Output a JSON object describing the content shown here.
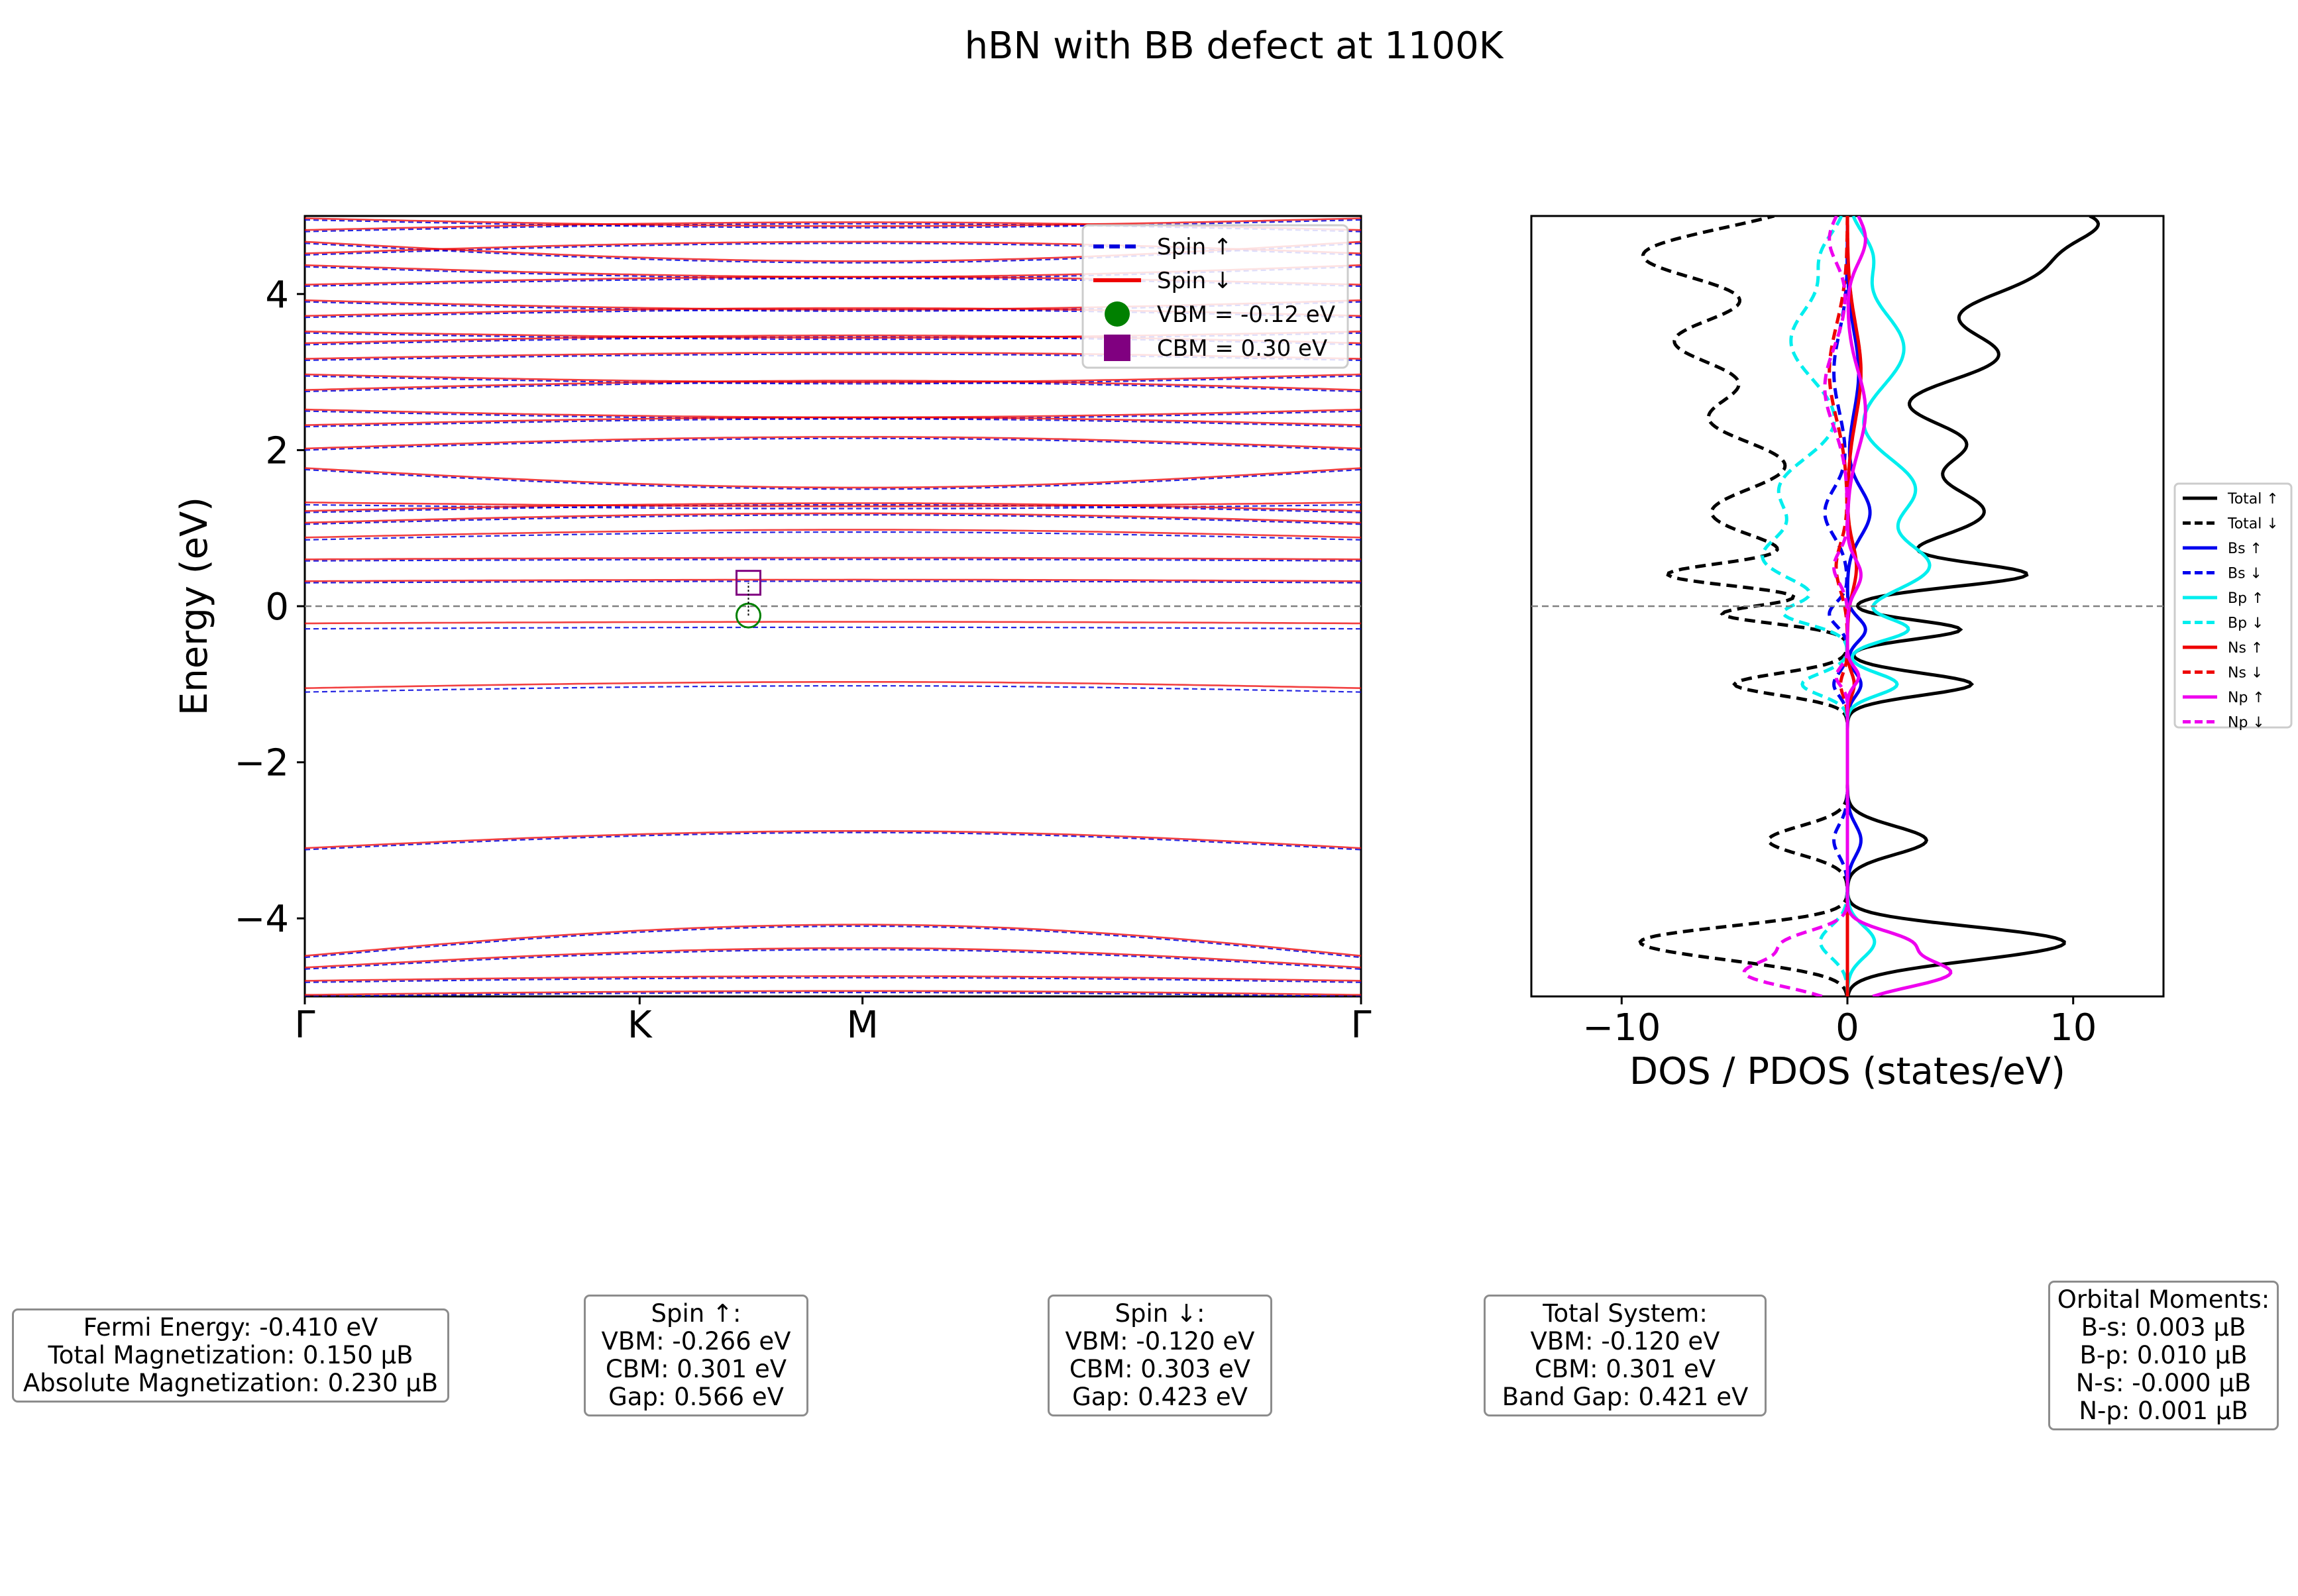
{
  "chart_data": [
    {
      "type": "line",
      "title": "hBN with BB defect at 1100K",
      "xlabel": "",
      "ylabel": "Energy (eV)",
      "ylim": [
        -5,
        5
      ],
      "yticks": [
        -4,
        -2,
        0,
        2,
        4
      ],
      "ytick_labels": [
        "−4",
        "−2",
        "0",
        "2",
        "4"
      ],
      "kpath": [
        {
          "label": "Γ",
          "pos": 0.0
        },
        {
          "label": "K",
          "pos": 0.317
        },
        {
          "label": "M",
          "pos": 0.528
        },
        {
          "label": "Γ",
          "pos": 1.0
        }
      ],
      "fermi_level": 0,
      "grid": false,
      "legend_position": "top-right",
      "legend": [
        {
          "label": "Spin ↑",
          "color": "#0000dd",
          "style": "dashed"
        },
        {
          "label": "Spin ↓",
          "color": "#ee0000",
          "style": "solid"
        },
        {
          "label": "VBM = -0.12 eV",
          "color": "#008000",
          "marker": "circle"
        },
        {
          "label": "CBM = 0.30 eV",
          "color": "#800080",
          "marker": "square"
        }
      ],
      "vbm": {
        "k": 0.42,
        "energy": -0.12
      },
      "cbm": {
        "k": 0.42,
        "energy": 0.3
      },
      "series": [
        {
          "spin": "up",
          "style": "dashed",
          "bands": [
            {
              "e0": -5.0,
              "de": 0.05
            },
            {
              "e0": -4.82,
              "de": 0.06
            },
            {
              "e0": -4.65,
              "de": 0.25
            },
            {
              "e0": -4.5,
              "de": 0.4
            },
            {
              "e0": -3.12,
              "de": 0.22
            },
            {
              "e0": -1.1,
              "de": 0.08
            },
            {
              "e0": -0.29,
              "de": 0.02
            },
            {
              "e0": 0.3,
              "de": 0.02
            },
            {
              "e0": 0.58,
              "de": 0.02
            },
            {
              "e0": 0.85,
              "de": 0.1
            },
            {
              "e0": 1.05,
              "de": 0.12
            },
            {
              "e0": 1.2,
              "de": 0.1
            },
            {
              "e0": 1.3,
              "de": -0.05
            },
            {
              "e0": 1.75,
              "de": -0.25
            },
            {
              "e0": 2.0,
              "de": 0.15
            },
            {
              "e0": 2.3,
              "de": 0.1
            },
            {
              "e0": 2.5,
              "de": -0.1
            },
            {
              "e0": 2.75,
              "de": 0.12
            },
            {
              "e0": 2.95,
              "de": -0.1
            },
            {
              "e0": 3.15,
              "de": 0.08
            },
            {
              "e0": 3.35,
              "de": 0.1
            },
            {
              "e0": 3.5,
              "de": -0.08
            },
            {
              "e0": 3.7,
              "de": 0.1
            },
            {
              "e0": 3.9,
              "de": -0.12
            },
            {
              "e0": 4.1,
              "de": 0.1
            },
            {
              "e0": 4.35,
              "de": -0.15
            },
            {
              "e0": 4.5,
              "de": 0.15
            },
            {
              "e0": 4.65,
              "de": -0.25
            },
            {
              "e0": 4.8,
              "de": 0.1
            },
            {
              "e0": 4.95,
              "de": -0.1
            }
          ]
        },
        {
          "spin": "down",
          "style": "solid",
          "bands": [
            {
              "e0": -4.98,
              "de": 0.05
            },
            {
              "e0": -4.8,
              "de": 0.06
            },
            {
              "e0": -4.63,
              "de": 0.25
            },
            {
              "e0": -4.48,
              "de": 0.4
            },
            {
              "e0": -3.1,
              "de": 0.22
            },
            {
              "e0": -1.05,
              "de": 0.08
            },
            {
              "e0": -0.22,
              "de": 0.02
            },
            {
              "e0": 0.32,
              "de": 0.02
            },
            {
              "e0": 0.6,
              "de": 0.02
            },
            {
              "e0": 0.88,
              "de": 0.1
            },
            {
              "e0": 1.07,
              "de": 0.12
            },
            {
              "e0": 1.22,
              "de": 0.1
            },
            {
              "e0": 1.33,
              "de": -0.05
            },
            {
              "e0": 1.77,
              "de": -0.25
            },
            {
              "e0": 2.02,
              "de": 0.15
            },
            {
              "e0": 2.32,
              "de": 0.1
            },
            {
              "e0": 2.52,
              "de": -0.1
            },
            {
              "e0": 2.77,
              "de": 0.12
            },
            {
              "e0": 2.97,
              "de": -0.1
            },
            {
              "e0": 3.17,
              "de": 0.08
            },
            {
              "e0": 3.37,
              "de": 0.1
            },
            {
              "e0": 3.52,
              "de": -0.08
            },
            {
              "e0": 3.72,
              "de": 0.1
            },
            {
              "e0": 3.92,
              "de": -0.12
            },
            {
              "e0": 4.12,
              "de": 0.1
            },
            {
              "e0": 4.37,
              "de": -0.15
            },
            {
              "e0": 4.52,
              "de": 0.15
            },
            {
              "e0": 4.67,
              "de": -0.25
            },
            {
              "e0": 4.82,
              "de": 0.1
            },
            {
              "e0": 4.97,
              "de": -0.1
            }
          ]
        }
      ]
    },
    {
      "type": "line",
      "xlabel": "DOS / PDOS (states/eV)",
      "ylabel": "",
      "xlim": [
        -14,
        14
      ],
      "ylim": [
        -5,
        5
      ],
      "xticks": [
        -10,
        0,
        10
      ],
      "xtick_labels": [
        "−10",
        "0",
        "10"
      ],
      "fermi_level": 0,
      "grid": false,
      "legend_position": "outside-right",
      "note": "spin-down curves plotted as negative values",
      "series": [
        {
          "name": "Total ↑",
          "color": "#000000",
          "style": "solid",
          "sign": 1,
          "peaks": [
            [
              -4.4,
              7.0,
              0.18
            ],
            [
              -4.2,
              4.5,
              0.15
            ],
            [
              -3.0,
              3.5,
              0.18
            ],
            [
              -1.0,
              5.5,
              0.14
            ],
            [
              -0.3,
              5.0,
              0.12
            ],
            [
              0.4,
              7.5,
              0.15
            ],
            [
              1.2,
              6.0,
              0.35
            ],
            [
              2.1,
              5.0,
              0.3
            ],
            [
              3.2,
              6.5,
              0.35
            ],
            [
              4.3,
              8.0,
              0.4
            ],
            [
              5.0,
              9.0,
              0.3
            ]
          ]
        },
        {
          "name": "Total ↓",
          "color": "#000000",
          "style": "dashed",
          "sign": -1,
          "peaks": [
            [
              -4.4,
              6.5,
              0.18
            ],
            [
              -4.2,
              4.5,
              0.15
            ],
            [
              -3.0,
              3.5,
              0.18
            ],
            [
              -1.0,
              5.0,
              0.14
            ],
            [
              -0.1,
              5.5,
              0.12
            ],
            [
              0.4,
              7.5,
              0.15
            ],
            [
              1.2,
              6.0,
              0.35
            ],
            [
              2.4,
              6.0,
              0.35
            ],
            [
              3.4,
              7.5,
              0.35
            ],
            [
              4.5,
              9.0,
              0.35
            ]
          ]
        },
        {
          "name": "Bs ↑",
          "color": "#0000ee",
          "style": "solid",
          "sign": 1,
          "peaks": [
            [
              -3.0,
              0.6,
              0.2
            ],
            [
              -1.0,
              0.6,
              0.15
            ],
            [
              -0.3,
              0.8,
              0.15
            ],
            [
              1.2,
              1.0,
              0.3
            ],
            [
              3.0,
              0.5,
              0.5
            ]
          ]
        },
        {
          "name": "Bs ↓",
          "color": "#0000ee",
          "style": "dashed",
          "sign": -1,
          "peaks": [
            [
              -3.0,
              0.6,
              0.2
            ],
            [
              -1.0,
              0.6,
              0.15
            ],
            [
              -0.1,
              0.8,
              0.15
            ],
            [
              1.2,
              1.0,
              0.3
            ],
            [
              3.0,
              0.6,
              0.5
            ]
          ]
        },
        {
          "name": "Bp ↑",
          "color": "#00eeee",
          "style": "solid",
          "sign": 1,
          "peaks": [
            [
              -4.3,
              1.2,
              0.2
            ],
            [
              -1.0,
              2.2,
              0.14
            ],
            [
              -0.3,
              2.6,
              0.14
            ],
            [
              0.5,
              3.5,
              0.3
            ],
            [
              1.5,
              3.0,
              0.4
            ],
            [
              3.3,
              2.5,
              0.5
            ],
            [
              4.5,
              1.0,
              0.3
            ]
          ]
        },
        {
          "name": "Bp ↓",
          "color": "#00eeee",
          "style": "dashed",
          "sign": -1,
          "peaks": [
            [
              -4.3,
              1.2,
              0.2
            ],
            [
              -1.0,
              2.0,
              0.14
            ],
            [
              -0.1,
              2.6,
              0.14
            ],
            [
              0.6,
              3.5,
              0.3
            ],
            [
              1.5,
              3.0,
              0.4
            ],
            [
              3.4,
              2.5,
              0.5
            ],
            [
              4.5,
              1.0,
              0.3
            ]
          ]
        },
        {
          "name": "Ns ↑",
          "color": "#ee0000",
          "style": "solid",
          "sign": 1,
          "peaks": [
            [
              -1.0,
              0.3,
              0.15
            ],
            [
              0.5,
              0.4,
              0.3
            ],
            [
              3.0,
              0.6,
              0.6
            ]
          ]
        },
        {
          "name": "Ns ↓",
          "color": "#ee0000",
          "style": "dashed",
          "sign": -1,
          "peaks": [
            [
              -1.0,
              0.3,
              0.15
            ],
            [
              0.5,
              0.5,
              0.3
            ],
            [
              3.0,
              0.8,
              0.6
            ]
          ]
        },
        {
          "name": "Np ↑",
          "color": "#ee00ee",
          "style": "solid",
          "sign": 1,
          "peaks": [
            [
              -4.7,
              4.5,
              0.18
            ],
            [
              -4.3,
              2.5,
              0.15
            ],
            [
              -0.9,
              0.5,
              0.12
            ],
            [
              0.4,
              0.6,
              0.2
            ],
            [
              2.5,
              0.8,
              0.5
            ],
            [
              4.7,
              0.8,
              0.3
            ]
          ]
        },
        {
          "name": "Np ↓",
          "color": "#ee00ee",
          "style": "dashed",
          "sign": -1,
          "peaks": [
            [
              -4.7,
              4.5,
              0.18
            ],
            [
              -4.3,
              2.5,
              0.15
            ],
            [
              -0.9,
              0.5,
              0.12
            ],
            [
              0.5,
              0.6,
              0.2
            ],
            [
              2.8,
              1.0,
              0.5
            ],
            [
              4.7,
              0.8,
              0.3
            ]
          ]
        }
      ]
    }
  ],
  "info_boxes": {
    "fermi": [
      "Fermi Energy: -0.410 eV",
      "Total Magnetization: 0.150 μB",
      "Absolute Magnetization: 0.230 μB"
    ],
    "spin_up": [
      "Spin ↑:",
      "VBM: -0.266 eV",
      "CBM: 0.301 eV",
      "Gap: 0.566 eV"
    ],
    "spin_down": [
      "Spin ↓:",
      "VBM: -0.120 eV",
      "CBM: 0.303 eV",
      "Gap: 0.423 eV"
    ],
    "total": [
      "Total System:",
      "VBM: -0.120 eV",
      "CBM: 0.301 eV",
      "Band Gap: 0.421 eV"
    ],
    "orbital": [
      "Orbital Moments:",
      "B-s: 0.003 μB",
      "B-p: 0.010 μB",
      "N-s: -0.000 μB",
      "N-p: 0.001 μB"
    ]
  }
}
